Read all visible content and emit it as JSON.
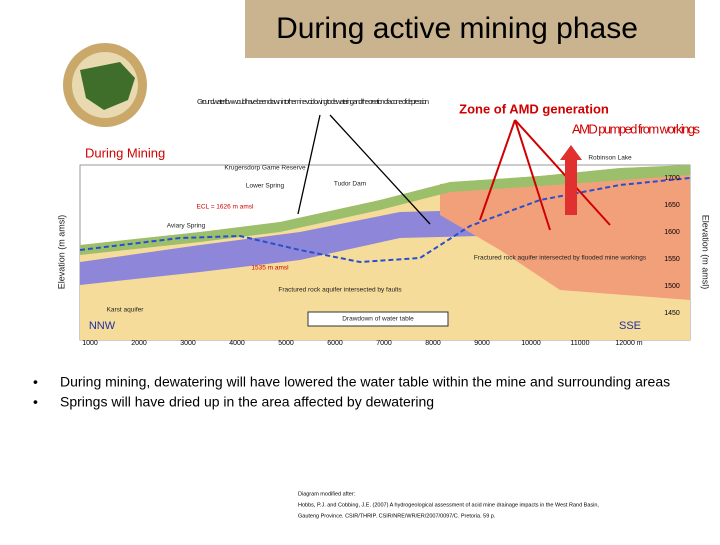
{
  "header": {
    "title": "During active mining phase"
  },
  "annotations": {
    "groundwater": "Groundwater flow would have been drawn into the mine void owing to dewatering and the creation of a cone of depression",
    "zone": "Zone of AMD generation",
    "pumped": "AMD pumped from workings",
    "phase": "During Mining"
  },
  "diagram": {
    "labels": [
      "Krugersdorp Game Reserve",
      "Lower Spring",
      "Tudor Dam",
      "ECL = 1626 m amsl",
      "Aviary Spring",
      "Karst aquifer",
      "1535 m amsl",
      "Fractured rock aquifer intersected by faults",
      "Fractured rock aquifer intersected by flooded mine workings",
      "Robinson Lake",
      "Drawdown of water table",
      "NNW",
      "SSE"
    ],
    "left_axis": "Elevation (m amsl)",
    "right_axis": "Elevation (m amsl)",
    "right_ticks": [
      "1700",
      "1650",
      "1600",
      "1550",
      "1500",
      "1450"
    ],
    "x_ticks": [
      "1000",
      "2000",
      "3000",
      "4000",
      "5000",
      "6000",
      "7000",
      "8000",
      "9000",
      "10000",
      "11000",
      "12000 m"
    ]
  },
  "bullets": [
    "During mining, dewatering will have lowered the water table within the mine and surrounding areas",
    "Springs will have dried up in the area affected by dewatering"
  ],
  "citation": [
    "Diagram modified after:",
    "Hobbs, P.J. and Cobbing, J.E. (2007) A hydrogeological assessment of acid mine drainage impacts in the West Rand Basin,",
    "Gauteng Province. CSIR/THRIP. CSIR/NRE/WR/ER/2007/0097/C. Pretoria. 59 p."
  ]
}
